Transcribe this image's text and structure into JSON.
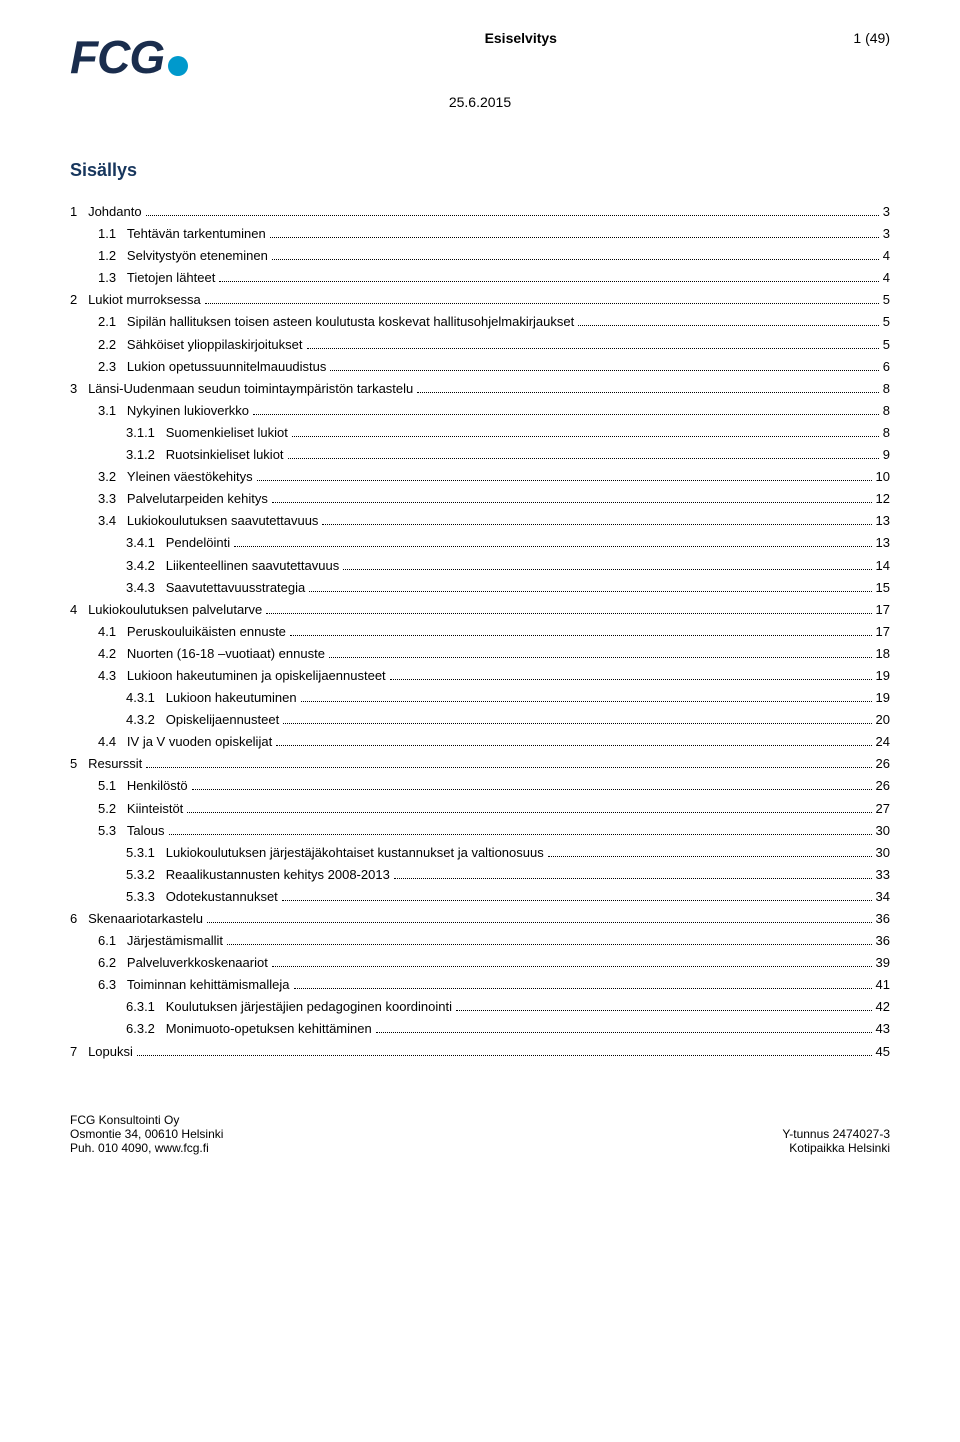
{
  "header": {
    "logo_text": "FCG",
    "doc_title": "Esiselvitys",
    "page_indicator": "1 (49)",
    "date": "25.6.2015"
  },
  "sisallys_title": "Sisällys",
  "toc": [
    {
      "level": 1,
      "num": "1",
      "title": "Johdanto",
      "page": "3"
    },
    {
      "level": 2,
      "num": "1.1",
      "title": "Tehtävän tarkentuminen",
      "page": "3"
    },
    {
      "level": 2,
      "num": "1.2",
      "title": "Selvitystyön eteneminen",
      "page": "4"
    },
    {
      "level": 2,
      "num": "1.3",
      "title": "Tietojen lähteet",
      "page": "4"
    },
    {
      "level": 1,
      "num": "2",
      "title": "Lukiot murroksessa",
      "page": "5"
    },
    {
      "level": 2,
      "num": "2.1",
      "title": "Sipilän hallituksen toisen asteen koulutusta koskevat hallitusohjelmakirjaukset",
      "page": "5"
    },
    {
      "level": 2,
      "num": "2.2",
      "title": "Sähköiset ylioppilaskirjoitukset",
      "page": "5"
    },
    {
      "level": 2,
      "num": "2.3",
      "title": "Lukion opetussuunnitelmauudistus",
      "page": "6"
    },
    {
      "level": 1,
      "num": "3",
      "title": "Länsi-Uudenmaan seudun toimintaympäristön tarkastelu",
      "page": "8"
    },
    {
      "level": 2,
      "num": "3.1",
      "title": "Nykyinen lukioverkko",
      "page": "8"
    },
    {
      "level": 3,
      "num": "3.1.1",
      "title": "Suomenkieliset lukiot",
      "page": "8"
    },
    {
      "level": 3,
      "num": "3.1.2",
      "title": "Ruotsinkieliset lukiot",
      "page": "9"
    },
    {
      "level": 2,
      "num": "3.2",
      "title": "Yleinen väestökehitys",
      "page": "10"
    },
    {
      "level": 2,
      "num": "3.3",
      "title": "Palvelutarpeiden kehitys",
      "page": "12"
    },
    {
      "level": 2,
      "num": "3.4",
      "title": "Lukiokoulutuksen saavutettavuus",
      "page": "13"
    },
    {
      "level": 3,
      "num": "3.4.1",
      "title": "Pendelöinti",
      "page": "13"
    },
    {
      "level": 3,
      "num": "3.4.2",
      "title": "Liikenteellinen saavutettavuus",
      "page": "14"
    },
    {
      "level": 3,
      "num": "3.4.3",
      "title": "Saavutettavuusstrategia",
      "page": "15"
    },
    {
      "level": 1,
      "num": "4",
      "title": "Lukiokoulutuksen palvelutarve",
      "page": "17"
    },
    {
      "level": 2,
      "num": "4.1",
      "title": "Peruskouluikäisten ennuste",
      "page": "17"
    },
    {
      "level": 2,
      "num": "4.2",
      "title": "Nuorten (16-18 –vuotiaat) ennuste",
      "page": "18"
    },
    {
      "level": 2,
      "num": "4.3",
      "title": "Lukioon hakeutuminen ja opiskelijaennusteet",
      "page": "19"
    },
    {
      "level": 3,
      "num": "4.3.1",
      "title": "Lukioon hakeutuminen",
      "page": "19"
    },
    {
      "level": 3,
      "num": "4.3.2",
      "title": "Opiskelijaennusteet",
      "page": "20"
    },
    {
      "level": 2,
      "num": "4.4",
      "title": "IV ja V vuoden opiskelijat",
      "page": "24"
    },
    {
      "level": 1,
      "num": "5",
      "title": "Resurssit",
      "page": "26"
    },
    {
      "level": 2,
      "num": "5.1",
      "title": "Henkilöstö",
      "page": "26"
    },
    {
      "level": 2,
      "num": "5.2",
      "title": "Kiinteistöt",
      "page": "27"
    },
    {
      "level": 2,
      "num": "5.3",
      "title": "Talous",
      "page": "30"
    },
    {
      "level": 3,
      "num": "5.3.1",
      "title": "Lukiokoulutuksen järjestäjäkohtaiset kustannukset ja valtionosuus",
      "page": "30"
    },
    {
      "level": 3,
      "num": "5.3.2",
      "title": "Reaalikustannusten kehitys 2008-2013",
      "page": "33"
    },
    {
      "level": 3,
      "num": "5.3.3",
      "title": "Odotekustannukset",
      "page": "34"
    },
    {
      "level": 1,
      "num": "6",
      "title": "Skenaariotarkastelu",
      "page": "36"
    },
    {
      "level": 2,
      "num": "6.1",
      "title": "Järjestämismallit",
      "page": "36"
    },
    {
      "level": 2,
      "num": "6.2",
      "title": "Palveluverkkoskenaariot",
      "page": "39"
    },
    {
      "level": 2,
      "num": "6.3",
      "title": "Toiminnan kehittämismalleja",
      "page": "41"
    },
    {
      "level": 3,
      "num": "6.3.1",
      "title": "Koulutuksen järjestäjien pedagoginen koordinointi",
      "page": "42"
    },
    {
      "level": 3,
      "num": "6.3.2",
      "title": "Monimuoto-opetuksen kehittäminen",
      "page": "43"
    },
    {
      "level": 1,
      "num": "7",
      "title": "Lopuksi",
      "page": "45"
    }
  ],
  "footer": {
    "company": "FCG Konsultointi Oy",
    "address": "Osmontie 34, 00610 Helsinki",
    "phone": "Puh. 010 4090, www.fcg.fi",
    "ytunnus": "Y-tunnus 2474027-3",
    "kotipaikka": "Kotipaikka Helsinki"
  }
}
